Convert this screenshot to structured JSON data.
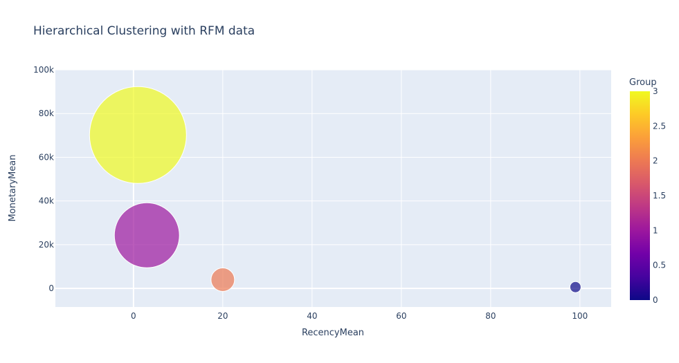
{
  "chart_data": {
    "type": "scatter",
    "title": "Hierarchical Clustering with RFM data",
    "xlabel": "RecencyMean",
    "ylabel": "MonetaryMean",
    "xlim": [
      -17.5,
      107
    ],
    "ylim": [
      -8500,
      100000
    ],
    "xticks": [
      0,
      20,
      40,
      60,
      80,
      100
    ],
    "xtick_labels": [
      "0",
      "20",
      "40",
      "60",
      "80",
      "100"
    ],
    "yticks": [
      0,
      20000,
      40000,
      60000,
      80000,
      100000
    ],
    "ytick_labels": [
      "0",
      "20k",
      "40k",
      "60k",
      "80k",
      "100k"
    ],
    "grid": true,
    "bubble_size_units": "marker size (relative)",
    "points": [
      {
        "group": 3,
        "x": 1,
        "y": 70200,
        "size": 70,
        "color": "#f0f921"
      },
      {
        "group": 1,
        "x": 3,
        "y": 24300,
        "size": 47,
        "color": "#9c179e"
      },
      {
        "group": 2,
        "x": 20,
        "y": 4000,
        "size": 17,
        "color": "#ed7953"
      },
      {
        "group": 0,
        "x": 99,
        "y": 600,
        "size": 8,
        "color": "#0d0887"
      }
    ],
    "colorbar": {
      "title": "Group",
      "min": 0,
      "max": 3,
      "ticks": [
        0,
        0.5,
        1,
        1.5,
        2,
        2.5,
        3
      ],
      "tick_labels": [
        "0",
        "0.5",
        "1",
        "1.5",
        "2",
        "2.5",
        "3"
      ],
      "colors": [
        "#0d0887",
        "#46039f",
        "#7201a8",
        "#9c179e",
        "#bd3786",
        "#d8576b",
        "#ed7953",
        "#fb9f3a",
        "#fdca26",
        "#f0f921"
      ]
    },
    "colors": {
      "plot_bg": "#e5ecf6",
      "grid": "#ffffff",
      "text": "#2a3f5f"
    }
  }
}
